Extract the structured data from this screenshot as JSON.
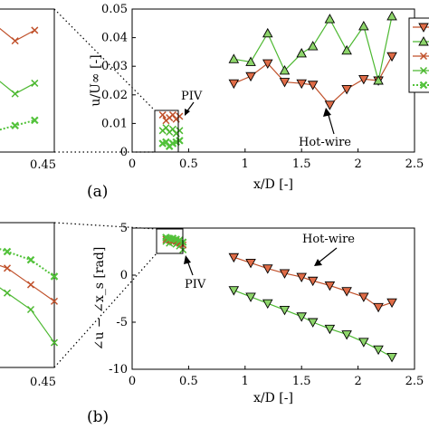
{
  "colors": {
    "hotwire": "#c0512b",
    "hotwire_marker": "#e06c47",
    "piv": "#4cb830",
    "piv_marker": "#8dd56a",
    "piv_dotted": "#52c23a"
  },
  "chart_data": [
    {
      "panel": "(a)",
      "type": "line",
      "xlabel": "x/D [-]",
      "ylabel": "u/U∞ [-]",
      "xlim": [
        0,
        2.5
      ],
      "ylim": [
        0,
        0.05
      ],
      "xticks": [
        "0",
        "0.5",
        "1",
        "1.5",
        "2",
        "2.5"
      ],
      "yticks": [
        "0",
        "0.01",
        "0.02",
        "0.03",
        "0.04",
        "0.05"
      ],
      "inset_tick": "0.45",
      "annotations": [
        "PIV",
        "Hot-wire"
      ],
      "series": [
        {
          "marker": "triangle-down",
          "color": "hotwire",
          "x": [
            0.9,
            1.05,
            1.2,
            1.35,
            1.5,
            1.6,
            1.75,
            1.9,
            2.05,
            2.18,
            2.3
          ],
          "y": [
            0.024,
            0.0265,
            0.031,
            0.0245,
            0.024,
            0.0235,
            0.0165,
            0.022,
            0.0255,
            0.025,
            0.0335
          ]
        },
        {
          "marker": "triangle-up",
          "color": "piv",
          "x": [
            0.9,
            1.05,
            1.2,
            1.35,
            1.5,
            1.6,
            1.75,
            1.9,
            2.05,
            2.18,
            2.3
          ],
          "y": [
            0.0325,
            0.0315,
            0.0415,
            0.0285,
            0.0345,
            0.037,
            0.0465,
            0.0355,
            0.044,
            0.025,
            0.0475
          ]
        },
        {
          "marker": "x",
          "color": "hotwire",
          "x": [
            0.27,
            0.3,
            0.33,
            0.36,
            0.39,
            0.42
          ],
          "y": [
            0.013,
            0.011,
            0.012,
            0.013,
            0.0115,
            0.0125
          ]
        },
        {
          "marker": "x",
          "color": "piv",
          "x": [
            0.27,
            0.3,
            0.33,
            0.36,
            0.39,
            0.42
          ],
          "y": [
            0.0075,
            0.0085,
            0.007,
            0.008,
            0.0065,
            0.0075
          ]
        },
        {
          "marker": "x-dotted",
          "color": "piv_dotted",
          "x": [
            0.27,
            0.3,
            0.33,
            0.36,
            0.39,
            0.42
          ],
          "y": [
            0.003,
            0.0035,
            0.002,
            0.003,
            0.0035,
            0.004
          ]
        }
      ]
    },
    {
      "panel": "(b)",
      "type": "line",
      "xlabel": "x/D [-]",
      "ylabel": "∠u − ∠x_s [rad]",
      "xlim": [
        0,
        2.5
      ],
      "ylim": [
        -10,
        5
      ],
      "xticks": [
        "0",
        "0.5",
        "1",
        "1.5",
        "2",
        "2.5"
      ],
      "yticks": [
        "5",
        "0",
        "-5",
        "-10"
      ],
      "inset_tick": "0.45",
      "annotations": [
        "PIV",
        "Hot-wire"
      ],
      "series": [
        {
          "marker": "triangle-down",
          "color": "hotwire",
          "x": [
            0.9,
            1.05,
            1.2,
            1.35,
            1.5,
            1.6,
            1.75,
            1.9,
            2.05,
            2.18,
            2.3
          ],
          "y": [
            1.9,
            1.3,
            0.7,
            0.2,
            -0.2,
            -0.6,
            -1.1,
            -1.7,
            -2.3,
            -3.4,
            -2.9
          ]
        },
        {
          "marker": "triangle-down",
          "color": "piv",
          "x": [
            0.9,
            1.05,
            1.2,
            1.35,
            1.5,
            1.6,
            1.75,
            1.9,
            2.05,
            2.18,
            2.3
          ],
          "y": [
            -1.6,
            -2.3,
            -3.0,
            -3.7,
            -4.4,
            -5.0,
            -5.7,
            -6.3,
            -7.1,
            -7.9,
            -8.7
          ]
        },
        {
          "marker": "x",
          "color": "piv",
          "x": [
            0.3,
            0.33,
            0.36,
            0.39,
            0.42,
            0.45
          ],
          "y": [
            3.6,
            3.4,
            3.5,
            3.3,
            3.1,
            2.7
          ]
        },
        {
          "marker": "x",
          "color": "hotwire",
          "x": [
            0.3,
            0.33,
            0.36,
            0.39,
            0.42,
            0.45
          ],
          "y": [
            3.8,
            3.7,
            3.7,
            3.6,
            3.4,
            3.2
          ]
        },
        {
          "marker": "x-dotted",
          "color": "piv_dotted",
          "x": [
            0.3,
            0.33,
            0.36,
            0.39,
            0.42,
            0.45
          ],
          "y": [
            4.0,
            3.9,
            3.9,
            3.8,
            3.7,
            3.5
          ]
        }
      ]
    }
  ]
}
